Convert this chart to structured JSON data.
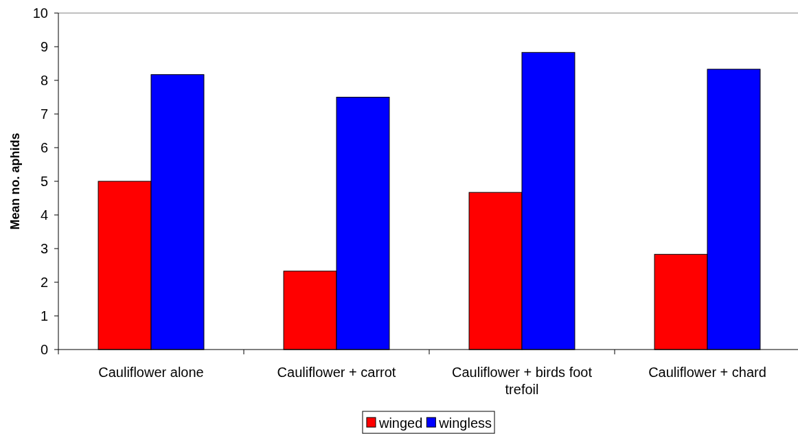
{
  "chart_data": {
    "type": "bar",
    "ylabel": "Mean no. aphids",
    "categories": [
      "Cauliflower alone",
      "Cauliflower + carrot",
      "Cauliflower + birds foot trefoil",
      "Cauliflower + chard"
    ],
    "series": [
      {
        "name": "winged",
        "color": "#ff0000",
        "values": [
          5,
          2.33,
          4.67,
          2.83
        ]
      },
      {
        "name": "wingless",
        "color": "#0000ff",
        "values": [
          8.17,
          7.5,
          8.83,
          8.33
        ]
      }
    ],
    "ylim": [
      0,
      10
    ],
    "yticks": [
      0,
      1,
      2,
      3,
      4,
      5,
      6,
      7,
      8,
      9,
      10
    ],
    "grid": false,
    "legend": "bottom"
  }
}
